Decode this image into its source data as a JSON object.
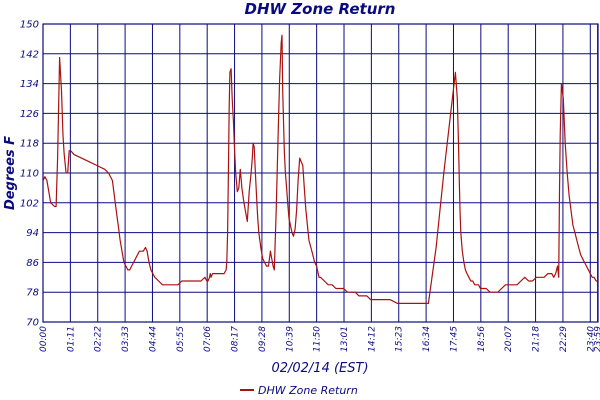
{
  "chart_data": {
    "type": "line",
    "title": "DHW Zone Return",
    "xlabel": "02/02/14 (EST)",
    "ylabel": "Degrees F",
    "ylim": [
      70,
      150
    ],
    "yticks": [
      70,
      78,
      86,
      94,
      102,
      110,
      118,
      126,
      134,
      142,
      150
    ],
    "xlim": [
      0,
      1440
    ],
    "xtick_labels": [
      "00:00",
      "01:11",
      "02:22",
      "03:33",
      "04:44",
      "05:55",
      "07:06",
      "08:17",
      "09:28",
      "10:39",
      "11:50",
      "13:01",
      "14:12",
      "15:23",
      "16:34",
      "17:45",
      "18:56",
      "20:07",
      "21:18",
      "22:29",
      "23:40",
      "23:59"
    ],
    "xtick_minutes": [
      0,
      71,
      142,
      213,
      284,
      355,
      426,
      497,
      568,
      639,
      710,
      781,
      852,
      923,
      994,
      1065,
      1136,
      1207,
      1278,
      1349,
      1420,
      1439
    ],
    "grid": true,
    "legend_position": "bottom-center",
    "colors": {
      "line": "#aa1111",
      "grid": "#0b0b80",
      "text": "#0b0b80"
    },
    "series": [
      {
        "name": "DHW Zone Return",
        "x": [
          0,
          5,
          10,
          15,
          20,
          30,
          34,
          38,
          43,
          48,
          52,
          55,
          60,
          64,
          68,
          72,
          80,
          100,
          120,
          140,
          160,
          170,
          180,
          190,
          195,
          200,
          205,
          210,
          215,
          220,
          225,
          230,
          240,
          250,
          260,
          266,
          270,
          275,
          280,
          290,
          300,
          310,
          320,
          330,
          340,
          350,
          360,
          370,
          380,
          390,
          400,
          410,
          420,
          425,
          428,
          432,
          434,
          436,
          440,
          450,
          460,
          470,
          475,
          477,
          479,
          481,
          483,
          485,
          488,
          491,
          494,
          497,
          500,
          504,
          508,
          512,
          516,
          520,
          525,
          530,
          535,
          540,
          543,
          545,
          548,
          551,
          554,
          557,
          560,
          565,
          570,
          575,
          580,
          585,
          590,
          597,
          600,
          605,
          610,
          614,
          618,
          620,
          622,
          624,
          626,
          629,
          632,
          635,
          638,
          642,
          646,
          650,
          654,
          658,
          662,
          666,
          670,
          674,
          678,
          682,
          686,
          690,
          695,
          700,
          705,
          710,
          712,
          714,
          716,
          718,
          720,
          730,
          740,
          750,
          760,
          770,
          780,
          790,
          800,
          810,
          820,
          830,
          840,
          850,
          860,
          870,
          880,
          890,
          900,
          920,
          940,
          960,
          980,
          1000,
          1020,
          1040,
          1060,
          1070,
          1075,
          1078,
          1080,
          1082,
          1084,
          1088,
          1092,
          1096,
          1100,
          1105,
          1110,
          1115,
          1120,
          1125,
          1130,
          1135,
          1140,
          1150,
          1160,
          1170,
          1180,
          1190,
          1200,
          1210,
          1220,
          1230,
          1240,
          1250,
          1260,
          1270,
          1280,
          1290,
          1300,
          1310,
          1320,
          1325,
          1330,
          1335,
          1338,
          1340,
          1342,
          1345,
          1350,
          1355,
          1360,
          1365,
          1370,
          1375,
          1380,
          1385,
          1390,
          1395,
          1400,
          1405,
          1410,
          1415,
          1420,
          1425,
          1430,
          1435,
          1439
        ],
        "values": [
          108,
          109,
          108,
          105,
          102,
          101,
          101,
          114,
          141,
          132,
          120,
          115,
          110,
          110,
          116,
          116,
          115,
          114,
          113,
          112,
          111,
          110,
          108,
          100,
          96,
          92,
          89,
          86,
          85,
          84,
          84,
          85,
          87,
          89,
          89,
          90,
          89,
          86,
          84,
          82,
          81,
          80,
          80,
          80,
          80,
          80,
          81,
          81,
          81,
          81,
          81,
          81,
          82,
          81,
          81,
          82,
          83,
          82,
          83,
          83,
          83,
          83,
          84,
          86,
          94,
          110,
          128,
          137,
          138,
          130,
          124,
          116,
          110,
          105,
          106,
          111,
          106,
          103,
          100,
          97,
          105,
          110,
          114,
          118,
          117,
          110,
          104,
          98,
          94,
          90,
          87,
          86,
          85,
          85,
          89,
          85,
          84,
          100,
          120,
          135,
          145,
          147,
          132,
          124,
          116,
          110,
          106,
          102,
          98,
          96,
          94,
          93,
          95,
          100,
          108,
          114,
          113,
          112,
          106,
          100,
          96,
          92,
          90,
          88,
          86,
          85,
          84,
          83,
          82,
          82,
          82,
          81,
          80,
          80,
          79,
          79,
          79,
          78,
          78,
          78,
          77,
          77,
          77,
          76,
          76,
          76,
          76,
          76,
          76,
          75,
          75,
          75,
          75,
          75,
          90,
          110,
          128,
          137,
          130,
          118,
          108,
          100,
          94,
          89,
          86,
          84,
          83,
          82,
          81,
          81,
          80,
          80,
          80,
          79,
          79,
          79,
          78,
          78,
          78,
          79,
          80,
          80,
          80,
          80,
          81,
          82,
          81,
          81,
          82,
          82,
          82,
          83,
          83,
          82,
          83,
          85,
          82,
          105,
          120,
          134,
          130,
          118,
          110,
          104,
          100,
          96,
          94,
          92,
          90,
          88,
          87,
          86,
          85,
          84,
          83,
          82,
          82,
          81,
          81
        ]
      }
    ]
  }
}
